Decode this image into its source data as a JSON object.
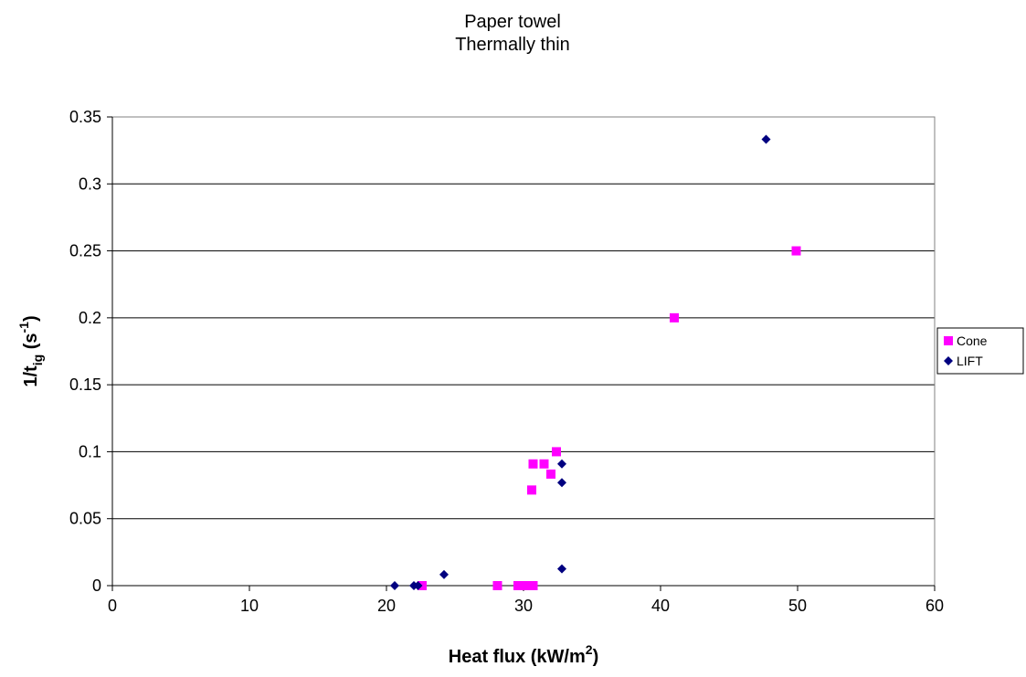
{
  "chart_data": {
    "type": "scatter",
    "title": [
      "Paper towel",
      "Thermally thin"
    ],
    "xlabel": {
      "main": "Heat flux (kW/m",
      "superscript": "2",
      "suffix": ")"
    },
    "ylabel": {
      "main": "1/t",
      "subscript": "ig",
      "middle": " (s",
      "superscript": "-1",
      "suffix": ")"
    },
    "xlim": [
      0,
      60
    ],
    "ylim": [
      0,
      0.35
    ],
    "x_ticks": [
      0,
      10,
      20,
      30,
      40,
      50,
      60
    ],
    "x_tick_labels": [
      "0",
      "10",
      "20",
      "30",
      "40",
      "50",
      "60"
    ],
    "y_ticks": [
      0,
      0.05,
      0.1,
      0.15,
      0.2,
      0.25,
      0.3,
      0.35
    ],
    "y_tick_labels": [
      "0",
      "0.05",
      "0.1",
      "0.15",
      "0.2",
      "0.25",
      "0.3",
      "0.35"
    ],
    "grid": "horizontal",
    "legend_position": "right",
    "series": [
      {
        "name": "Cone",
        "marker": "square",
        "color": "#ff00ff",
        "points": [
          [
            22.6,
            0
          ],
          [
            28.1,
            0
          ],
          [
            29.6,
            0
          ],
          [
            30.1,
            0
          ],
          [
            30.7,
            0
          ],
          [
            30.6,
            0.0714
          ],
          [
            30.7,
            0.0909
          ],
          [
            31.5,
            0.0909
          ],
          [
            32.0,
            0.0833
          ],
          [
            32.4,
            0.1
          ],
          [
            41.0,
            0.2
          ],
          [
            49.9,
            0.25
          ]
        ]
      },
      {
        "name": "LIFT",
        "marker": "diamond",
        "color": "#000080",
        "points": [
          [
            20.6,
            0
          ],
          [
            22.0,
            0
          ],
          [
            22.3,
            0
          ],
          [
            24.2,
            0.0083
          ],
          [
            32.8,
            0.0125
          ],
          [
            32.8,
            0.0769
          ],
          [
            32.8,
            0.0909
          ],
          [
            47.7,
            0.3333
          ]
        ]
      }
    ]
  }
}
